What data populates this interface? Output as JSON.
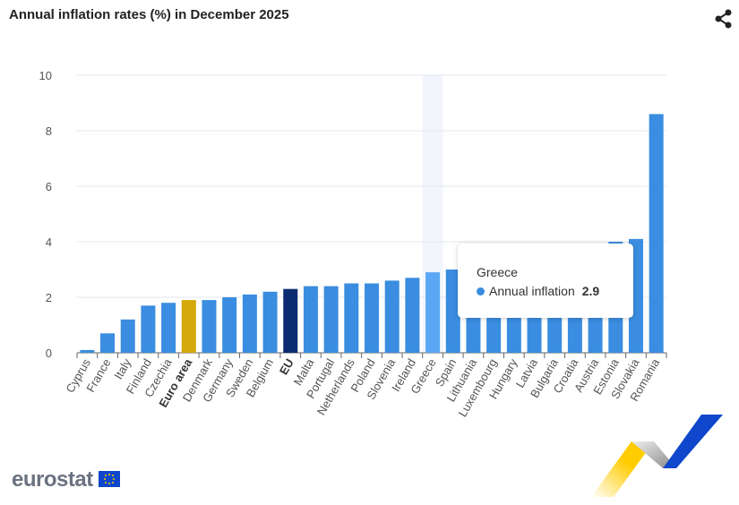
{
  "title": "Annual inflation rates (%) in December 2025",
  "tooltip": {
    "country": "Greece",
    "series": "Annual inflation",
    "value": "2.9"
  },
  "logo": "eurostat",
  "colors": {
    "default": "#3a8de0",
    "highlight": "#5ba7f5",
    "euro_area": "#d4a80a",
    "eu": "#0c2c72"
  },
  "chart_data": {
    "type": "bar",
    "title": "Annual inflation rates (%) in December 2025",
    "categories": [
      "Cyprus",
      "France",
      "Italy",
      "Finland",
      "Czechia",
      "Euro area",
      "Denmark",
      "Germany",
      "Sweden",
      "Belgium",
      "EU",
      "Malta",
      "Portugal",
      "Netherlands",
      "Poland",
      "Slovenia",
      "Ireland",
      "Greece",
      "Spain",
      "Lithuania",
      "Luxembourg",
      "Hungary",
      "Latvia",
      "Bulgaria",
      "Croatia",
      "Austria",
      "Estonia",
      "Slovakia",
      "Romania"
    ],
    "series": [
      {
        "name": "Annual inflation",
        "values": [
          0.1,
          0.7,
          1.2,
          1.7,
          1.8,
          1.9,
          1.9,
          2.0,
          2.1,
          2.2,
          2.3,
          2.4,
          2.4,
          2.5,
          2.5,
          2.6,
          2.7,
          2.9,
          3.0,
          3.2,
          3.3,
          3.3,
          3.5,
          3.5,
          3.8,
          3.8,
          4.0,
          4.1,
          8.6
        ]
      }
    ],
    "bold_categories": [
      "Euro area",
      "EU"
    ],
    "hovered": "Greece",
    "yticks": [
      0,
      2,
      4,
      6,
      8,
      10
    ],
    "ylim": [
      0,
      10
    ],
    "grid": true
  }
}
